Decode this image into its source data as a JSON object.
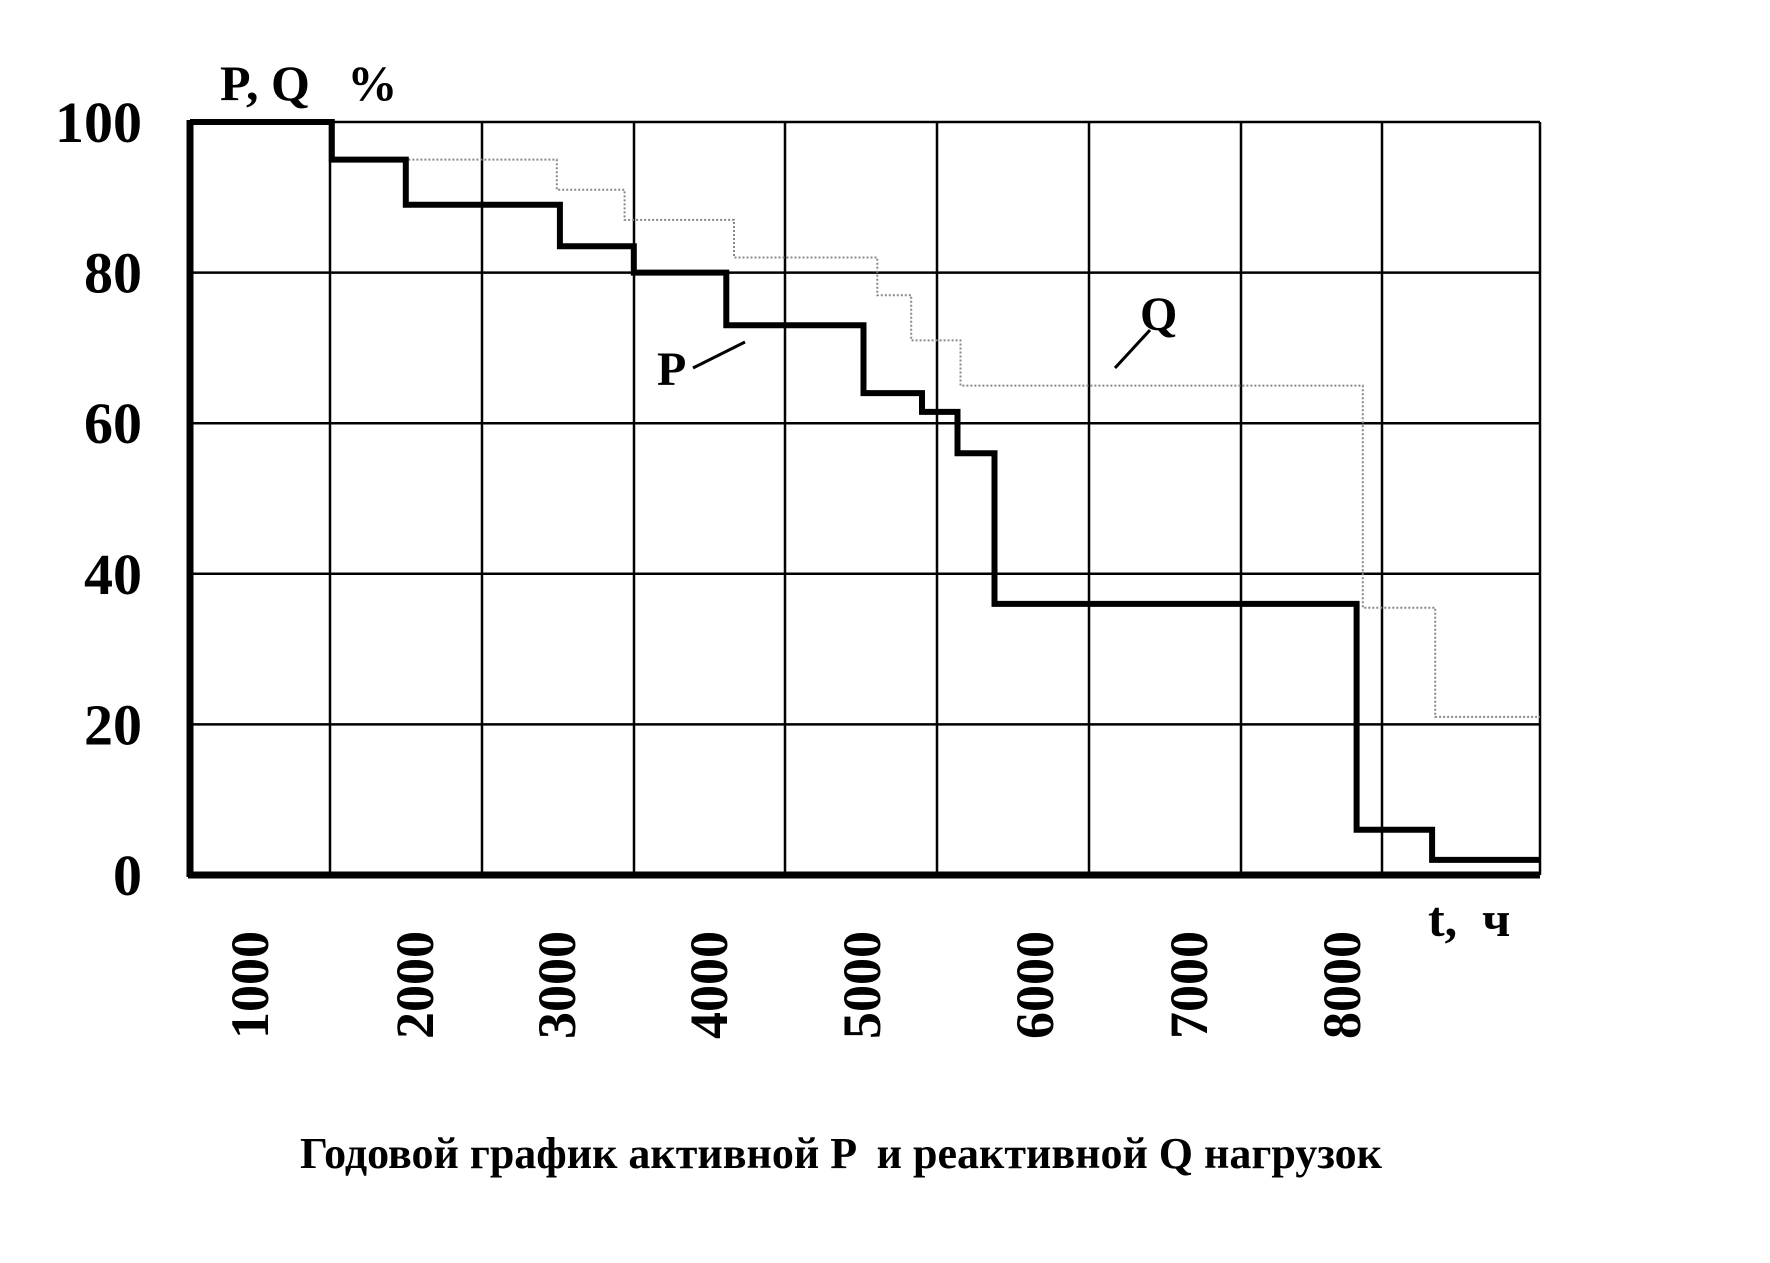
{
  "chart_data": {
    "type": "line",
    "title": "Годовой график активной P  и реактивной Q нагрузок",
    "ylabel": "P, Q   %",
    "xlabel": "t,  ч",
    "ylim": [
      0,
      100
    ],
    "xlim": [
      0,
      8760
    ],
    "y_ticks": [
      "0",
      "20",
      "40",
      "60",
      "80",
      "100"
    ],
    "x_ticks": [
      "1000",
      "2000",
      "3000",
      "4000",
      "5000",
      "6000",
      "7000",
      "8000"
    ],
    "grid": true,
    "series": [
      {
        "name": "P",
        "style": "solid-thick",
        "color": "#000000",
        "x": [
          0,
          920,
          920,
          1400,
          1400,
          2400,
          2400,
          2880,
          2880,
          3480,
          3480,
          4370,
          4370,
          4750,
          4750,
          4980,
          4980,
          5220,
          5220,
          7570,
          7570,
          8060,
          8060,
          8760
        ],
        "y": [
          100,
          100,
          95,
          95,
          89,
          89,
          83.5,
          83.5,
          80,
          80,
          73,
          73,
          64,
          64,
          61.5,
          61.5,
          56,
          56,
          36,
          36,
          6,
          6,
          2,
          2
        ]
      },
      {
        "name": "Q",
        "style": "dotted-thin",
        "color": "#888888",
        "x": [
          0,
          920,
          920,
          2380,
          2380,
          2820,
          2820,
          3530,
          3530,
          4460,
          4460,
          4680,
          4680,
          5000,
          5000,
          5230,
          5230,
          7610,
          7610,
          8080,
          8080,
          8760
        ],
        "y": [
          100,
          100,
          95,
          95,
          91,
          91,
          87,
          87,
          82,
          82,
          77,
          77,
          71,
          71,
          65,
          65,
          65,
          65,
          35.5,
          35.5,
          21,
          21
        ]
      }
    ]
  }
}
